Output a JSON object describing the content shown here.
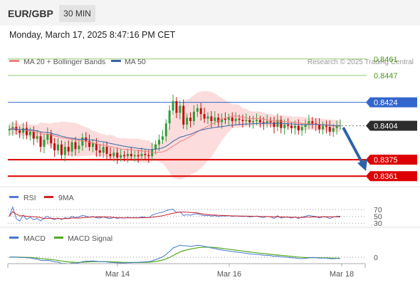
{
  "header": {
    "symbol": "EUR/GBP",
    "interval": "30 MIN",
    "datetime": "Monday, March 17, 2025 8:47:16 PM CET"
  },
  "legend": {
    "ma20_label": "MA 20 + Bollinger Bands",
    "ma50_label": "MA 50",
    "credit": "Research © 2025 Trading Central",
    "rsi_label": "RSI",
    "rsi_ma_label": "9MA",
    "macd_label": "MACD",
    "macd_signal_label": "MACD Signal"
  },
  "colors": {
    "candle_up": "#2e9e3a",
    "candle_down": "#c01010",
    "ma20": "#f08080",
    "band_fill": "#fbd0d0",
    "ma50": "#3a64a8",
    "resistance_green": "#8fcc6a",
    "resistance_green_text": "#4a9a1a",
    "blue_level": "#3366cc",
    "support_red": "#dd0000",
    "current_price_box": "#2d2d2d",
    "rsi": "#5577dd",
    "rsi_ma": "#cc2222",
    "macd": "#4477cc",
    "macd_signal": "#55aa22",
    "forecast_arrow": "#2f63a8",
    "interval_badge_bg": "#e3e3e3"
  },
  "chart_data": {
    "type": "candlestick",
    "x_ticks": [
      "Mar 14",
      "Mar 16",
      "Mar 18"
    ],
    "price_range": [
      0.8352,
      0.847
    ],
    "levels": [
      {
        "value": 0.8461,
        "label": "0.8461",
        "kind": "resistance"
      },
      {
        "value": 0.8447,
        "label": "0.8447",
        "kind": "resistance"
      },
      {
        "value": 0.8424,
        "label": "0.8424",
        "kind": "pivot"
      },
      {
        "value": 0.8404,
        "label": "0.8404",
        "kind": "current"
      },
      {
        "value": 0.8375,
        "label": "0.8375",
        "kind": "support"
      },
      {
        "value": 0.8361,
        "label": "0.8361",
        "kind": "support"
      }
    ],
    "forecast": {
      "direction": "down",
      "target": 0.8366
    },
    "closes": [
      0.8401,
      0.8403,
      0.84,
      0.8398,
      0.8402,
      0.8396,
      0.8399,
      0.8393,
      0.8395,
      0.8386,
      0.8392,
      0.8397,
      0.8389,
      0.8383,
      0.8388,
      0.8379,
      0.8386,
      0.8382,
      0.839,
      0.8384,
      0.8387,
      0.8394,
      0.8391,
      0.8386,
      0.8389,
      0.8383,
      0.8381,
      0.8386,
      0.838,
      0.8378,
      0.8381,
      0.8377,
      0.8379,
      0.8378,
      0.838,
      0.8378,
      0.8379,
      0.8378,
      0.838,
      0.8379,
      0.8378,
      0.8384,
      0.8388,
      0.8392,
      0.8395,
      0.8406,
      0.8417,
      0.8425,
      0.8415,
      0.8421,
      0.8405,
      0.8411,
      0.8408,
      0.8416,
      0.8419,
      0.8414,
      0.841,
      0.8412,
      0.8408,
      0.8411,
      0.8407,
      0.841,
      0.8409,
      0.8411,
      0.8408,
      0.841,
      0.8409,
      0.8408,
      0.8409,
      0.8407,
      0.8408,
      0.8409,
      0.8407,
      0.8406,
      0.8408,
      0.8407,
      0.8403,
      0.8409,
      0.8402,
      0.8405,
      0.8404,
      0.8402,
      0.8404,
      0.84,
      0.8403,
      0.8405,
      0.8408,
      0.8406,
      0.8405,
      0.8401,
      0.8404,
      0.8403,
      0.8399,
      0.8402,
      0.8404,
      0.8404
    ],
    "rsi": {
      "label": "RSI",
      "levels": [
        70,
        50,
        30
      ],
      "level_labels": [
        "70",
        "50",
        "30"
      ],
      "range": [
        20,
        85
      ]
    },
    "macd": {
      "label": "MACD",
      "zero_label": "0"
    }
  }
}
